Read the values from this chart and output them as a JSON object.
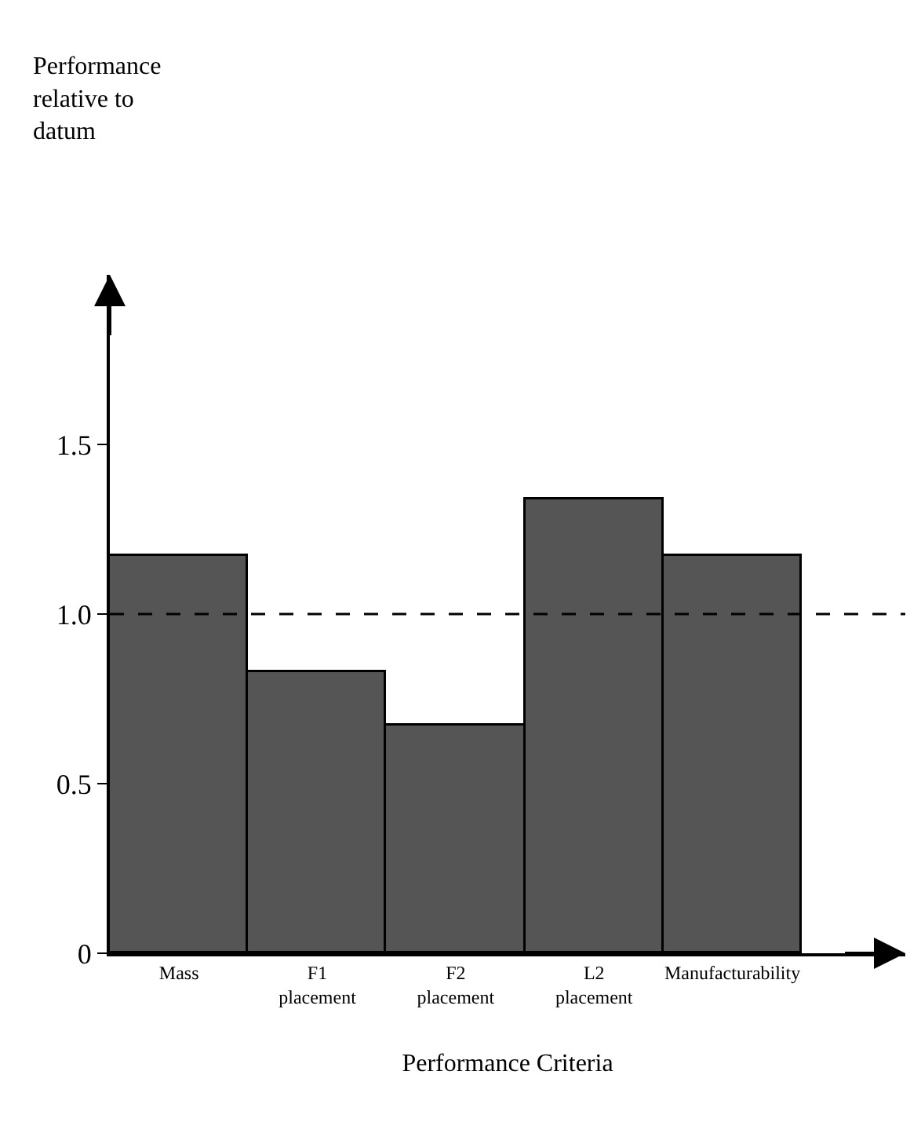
{
  "chart_data": {
    "type": "bar",
    "categories": [
      "Mass",
      "F1 placement",
      "F2 placement",
      "L2 placement",
      "Manufacturability"
    ],
    "values": [
      1.17,
      0.83,
      0.67,
      1.34,
      1.17
    ],
    "color": "#555555",
    "annotations": [
      "Performance relative to datum"
    ],
    "xlabel": "Performance Criteria",
    "ylim": [
      0,
      2.0
    ],
    "yticks": [
      0,
      0.5,
      {
        "value": 1,
        "label": "1.0"
      },
      1.5
    ],
    "ref_lines": [
      {
        "axis": "y",
        "value": 1,
        "line_style": "dashed",
        "color": "#000000"
      }
    ]
  }
}
